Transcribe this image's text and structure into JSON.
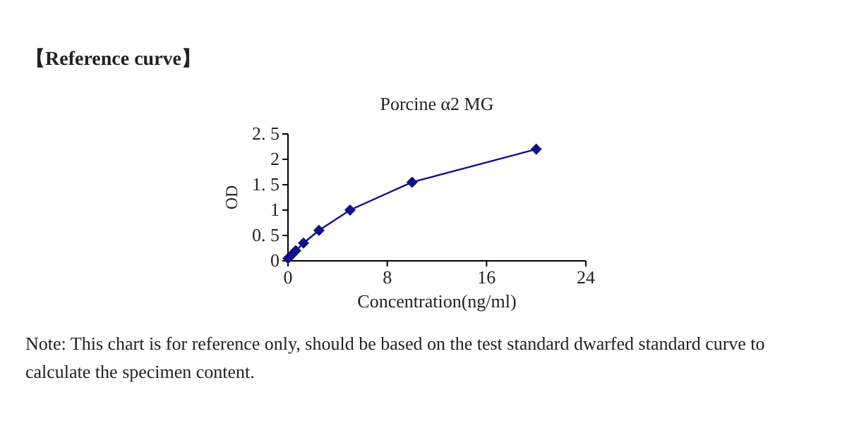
{
  "chart_data": {
    "type": "line",
    "title": "Porcine α2 MG",
    "xlabel": "Concentration(ng/ml)",
    "ylabel": "OD",
    "annotations": [
      "【Reference curve】",
      "Note: This chart is for reference only, should be based on the test standard dwarfed standard curve to calculate the specimen content."
    ],
    "x": [
      0,
      0.3125,
      0.625,
      1.25,
      2.5,
      5,
      10,
      20
    ],
    "series": [
      {
        "color": "#10108a",
        "values": [
          0.05,
          0.12,
          0.2,
          0.35,
          0.6,
          1.0,
          1.55,
          2.2
        ]
      }
    ],
    "xlim": [
      0,
      24
    ],
    "xticks": [
      0,
      8,
      16,
      24
    ],
    "ylim": [
      0,
      2.5
    ],
    "yticks": [
      0,
      {
        "value": 0.5,
        "label": "0. 5"
      },
      1,
      {
        "value": 1.5,
        "label": "1. 5"
      },
      2,
      {
        "value": 2.5,
        "label": "2. 5"
      }
    ],
    "marker": "diamond",
    "line_style": "solid",
    "grid": false
  }
}
